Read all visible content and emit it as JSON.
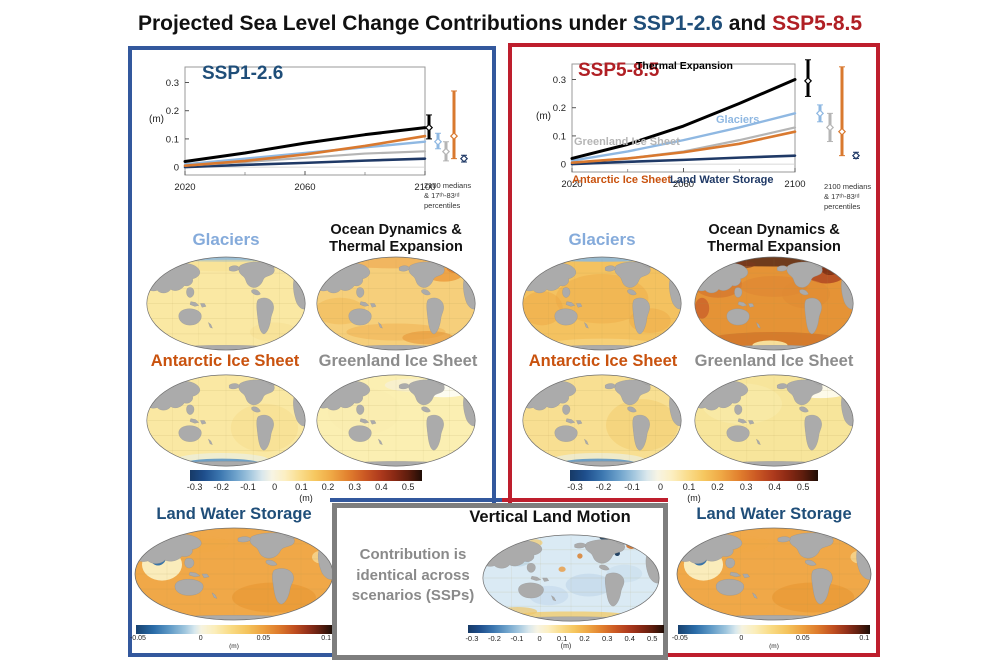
{
  "title": {
    "prefix": "Projected Sea Level Change Contributions under",
    "ssp126": "SSP1-2.6",
    "conj": "and",
    "ssp585": "SSP5-8.5"
  },
  "colors": {
    "panel_blue_border": "#33589D",
    "panel_red_border": "#BE1E2D",
    "gray_box_border": "#7E7E7E",
    "ssp126_title": "#1F4E79",
    "ssp585_title": "#B01F24",
    "glaciers_label": "#85ABDB",
    "antarctic_label": "#C9520E",
    "greenland_label": "#8C8C8C",
    "lws_label": "#1F4E79",
    "note_gray": "#8A8A8A"
  },
  "map_labels": {
    "glaciers": "Glaciers",
    "odte_line1": "Ocean Dynamics &",
    "odte_line2": "Thermal Expansion",
    "antarctic": "Antarctic Ice Sheet",
    "greenland": "Greenland Ice Sheet",
    "lws": "Land Water Storage"
  },
  "center_box": {
    "title": "Vertical Land Motion",
    "line1": "Contribution is",
    "line2": "identical across",
    "line3": "scenarios (SSPs)"
  },
  "colorbars": {
    "main": {
      "ticks": [
        "-0.3",
        "-0.2",
        "-0.1",
        "0",
        "0.1",
        "0.2",
        "0.3",
        "0.4",
        "0.5"
      ],
      "unit": "(m)"
    },
    "lws": {
      "ticks": [
        "-0.05",
        "0",
        "0.05",
        "0.1"
      ],
      "unit": "(m)"
    }
  },
  "chart_data": [
    {
      "type": "line",
      "title": "SSP1-2.6",
      "x": [
        2020,
        2040,
        2060,
        2080,
        2100
      ],
      "xticks": [
        2020,
        2060,
        2100
      ],
      "xminor": [
        2040,
        2080
      ],
      "yticks": [
        0,
        0.1,
        0.2,
        0.3
      ],
      "ylabel": "(m)",
      "ylim": [
        -0.028,
        0.355
      ],
      "xlim": [
        2020,
        2100
      ],
      "grid": false,
      "series": [
        {
          "name": "Thermal Expansion",
          "color": "#000000",
          "values": [
            0.02,
            0.05,
            0.085,
            0.115,
            0.14
          ],
          "median": 0.14,
          "p17": 0.1,
          "p83": 0.185
        },
        {
          "name": "Glaciers",
          "color": "#8FB8E2",
          "values": [
            0.01,
            0.03,
            0.05,
            0.07,
            0.09
          ],
          "median": 0.09,
          "p17": 0.065,
          "p83": 0.12
        },
        {
          "name": "Greenland Ice Sheet",
          "color": "#B5B5B5",
          "values": [
            0.005,
            0.018,
            0.033,
            0.048,
            0.056
          ],
          "median": 0.055,
          "p17": 0.022,
          "p83": 0.09
        },
        {
          "name": "Antarctic Ice Sheet",
          "color": "#D9792F",
          "values": [
            0.005,
            0.022,
            0.045,
            0.075,
            0.11
          ],
          "median": 0.11,
          "p17": 0.03,
          "p83": 0.27
        },
        {
          "name": "Land Water Storage",
          "color": "#1F3966",
          "values": [
            0.0,
            0.008,
            0.015,
            0.023,
            0.03
          ],
          "median": 0.03,
          "p17": 0.018,
          "p83": 0.042
        }
      ],
      "caption": [
        "2100 medians",
        "& 17ᵗʰ-83ʳᵈ",
        "percentiles"
      ]
    },
    {
      "type": "line",
      "title": "SSP5-8.5",
      "x": [
        2020,
        2040,
        2060,
        2080,
        2100
      ],
      "xticks": [
        2020,
        2060,
        2100
      ],
      "xminor": [
        2040,
        2080
      ],
      "yticks": [
        0,
        0.1,
        0.2,
        0.3
      ],
      "ylabel": "(m)",
      "ylim": [
        -0.028,
        0.355
      ],
      "xlim": [
        2020,
        2100
      ],
      "grid": false,
      "series": [
        {
          "name": "Thermal Expansion",
          "color": "#000000",
          "values": [
            0.02,
            0.07,
            0.135,
            0.215,
            0.3
          ],
          "median": 0.295,
          "p17": 0.24,
          "p83": 0.37
        },
        {
          "name": "Glaciers",
          "color": "#8FB8E2",
          "values": [
            0.012,
            0.045,
            0.085,
            0.13,
            0.18
          ],
          "median": 0.18,
          "p17": 0.15,
          "p83": 0.21
        },
        {
          "name": "Greenland Ice Sheet",
          "color": "#B5B5B5",
          "values": [
            0.005,
            0.02,
            0.045,
            0.085,
            0.13
          ],
          "median": 0.13,
          "p17": 0.08,
          "p83": 0.18
        },
        {
          "name": "Antarctic Ice Sheet",
          "color": "#D9792F",
          "values": [
            0.005,
            0.02,
            0.042,
            0.072,
            0.115
          ],
          "median": 0.115,
          "p17": 0.03,
          "p83": 0.345
        },
        {
          "name": "Land Water Storage",
          "color": "#1F3966",
          "values": [
            0.0,
            0.008,
            0.015,
            0.023,
            0.03
          ],
          "median": 0.03,
          "p17": 0.02,
          "p83": 0.042
        }
      ],
      "caption": [
        "2100 medians",
        "& 17ᵗʰ-83ʳᵈ",
        "percentiles"
      ]
    }
  ]
}
